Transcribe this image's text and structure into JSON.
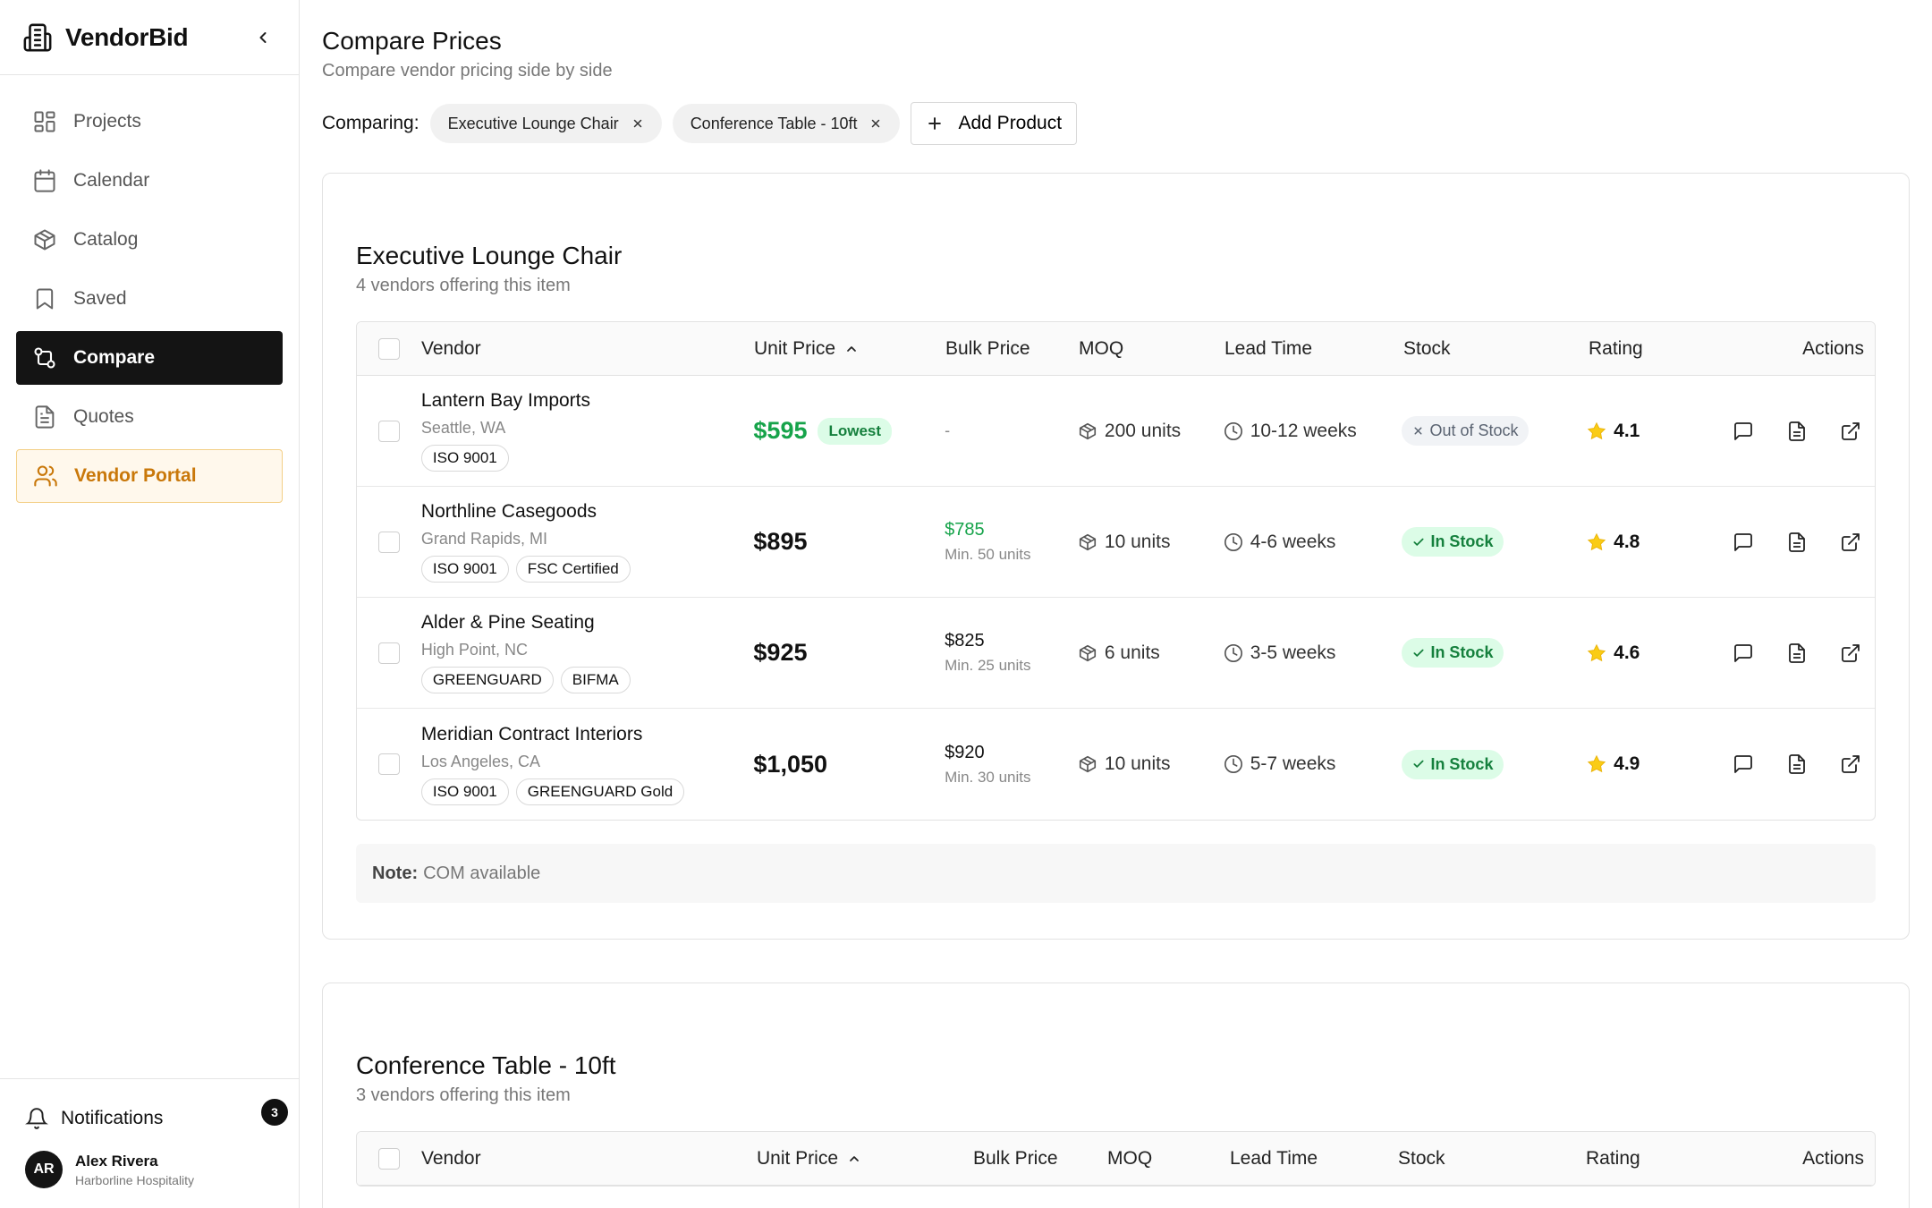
{
  "app": {
    "name": "VendorBid"
  },
  "sidebar": {
    "items": [
      {
        "label": "Projects",
        "icon": "grid-icon"
      },
      {
        "label": "Calendar",
        "icon": "calendar-icon"
      },
      {
        "label": "Catalog",
        "icon": "box-icon"
      },
      {
        "label": "Saved",
        "icon": "bookmark-icon"
      },
      {
        "label": "Compare",
        "icon": "compare-icon",
        "active": true
      },
      {
        "label": "Quotes",
        "icon": "document-icon"
      },
      {
        "label": "Vendor Portal",
        "icon": "users-icon",
        "highlight": true
      }
    ],
    "notifications": {
      "label": "Notifications",
      "count": "3"
    },
    "user": {
      "initials": "AR",
      "name": "Alex Rivera",
      "org": "Harborline Hospitality"
    }
  },
  "page": {
    "title": "Compare Prices",
    "subtitle": "Compare vendor pricing side by side",
    "comparing_label": "Comparing:",
    "chips": [
      "Executive Lounge Chair",
      "Conference Table - 10ft"
    ],
    "add_product": "Add Product"
  },
  "columns": {
    "vendor": "Vendor",
    "unit_price": "Unit Price",
    "bulk_price": "Bulk Price",
    "moq": "MOQ",
    "lead_time": "Lead Time",
    "stock": "Stock",
    "rating": "Rating",
    "actions": "Actions"
  },
  "products": [
    {
      "title": "Executive Lounge Chair",
      "subtitle": "4 vendors offering this item",
      "vendors": [
        {
          "name": "Lantern Bay Imports",
          "location": "Seattle, WA",
          "tags": [
            "ISO 9001"
          ],
          "unit_price": "$595",
          "lowest": "Lowest",
          "bulk_price": "-",
          "bulk_min": "",
          "moq": "200 units",
          "lead_time": "10-12 weeks",
          "stock": "Out of Stock",
          "in_stock": false,
          "rating": "4.1"
        },
        {
          "name": "Northline Casegoods",
          "location": "Grand Rapids, MI",
          "tags": [
            "ISO 9001",
            "FSC Certified"
          ],
          "unit_price": "$895",
          "lowest": "",
          "bulk_price": "$785",
          "bulk_min": "Min. 50 units",
          "moq": "10 units",
          "lead_time": "4-6 weeks",
          "stock": "In Stock",
          "in_stock": true,
          "rating": "4.8"
        },
        {
          "name": "Alder & Pine Seating",
          "location": "High Point, NC",
          "tags": [
            "GREENGUARD",
            "BIFMA"
          ],
          "unit_price": "$925",
          "lowest": "",
          "bulk_price": "$825",
          "bulk_min": "Min. 25 units",
          "moq": "6 units",
          "lead_time": "3-5 weeks",
          "stock": "In Stock",
          "in_stock": true,
          "rating": "4.6"
        },
        {
          "name": "Meridian Contract Interiors",
          "location": "Los Angeles, CA",
          "tags": [
            "ISO 9001",
            "GREENGUARD Gold"
          ],
          "unit_price": "$1,050",
          "lowest": "",
          "bulk_price": "$920",
          "bulk_min": "Min. 30 units",
          "moq": "10 units",
          "lead_time": "5-7 weeks",
          "stock": "In Stock",
          "in_stock": true,
          "rating": "4.9"
        }
      ],
      "note_label": "Note:",
      "note_text": "COM available"
    },
    {
      "title": "Conference Table - 10ft",
      "subtitle": "3 vendors offering this item"
    }
  ],
  "colors": {
    "active_nav": "#141414",
    "portal_accent": "#c9780a",
    "lowest_green": "#16a34a",
    "star": "#facc15"
  }
}
